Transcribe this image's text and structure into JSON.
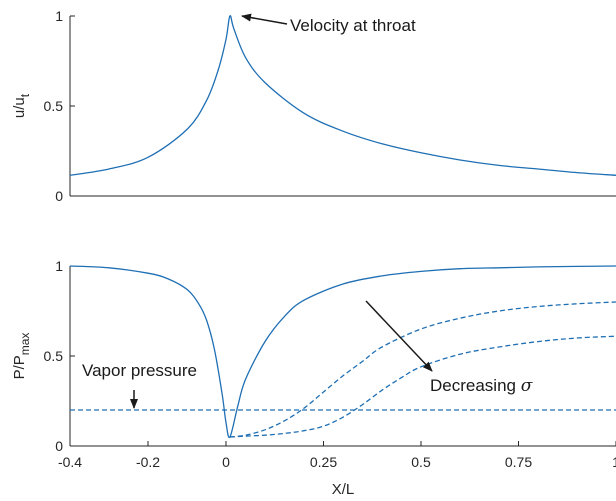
{
  "chart_data": [
    {
      "type": "line",
      "panel": "top",
      "xlim": [
        -0.4,
        1
      ],
      "ylim": [
        0,
        1
      ],
      "yticks": [
        "0",
        "0.5",
        "1"
      ],
      "ylabel_main": "u/u",
      "ylabel_sub": "t",
      "grid": false,
      "color": "#1f6fb4",
      "series": [
        {
          "style": "solid",
          "x": [
            -0.4,
            -0.3,
            -0.2,
            -0.1,
            -0.05,
            -0.02,
            0.0,
            0.01,
            0.02,
            0.05,
            0.1,
            0.2,
            0.3,
            0.4,
            0.5,
            0.6,
            0.7,
            0.8,
            0.9,
            1.0
          ],
          "y": [
            0.115,
            0.15,
            0.215,
            0.37,
            0.53,
            0.7,
            0.87,
            1.0,
            0.93,
            0.77,
            0.63,
            0.46,
            0.36,
            0.29,
            0.24,
            0.2,
            0.17,
            0.15,
            0.13,
            0.115
          ]
        }
      ],
      "annotations": [
        {
          "text": "Velocity at throat",
          "arrow_to": [
            0.01,
            1.0
          ]
        }
      ]
    },
    {
      "type": "line",
      "panel": "bottom",
      "xlim": [
        -0.4,
        1
      ],
      "ylim": [
        0,
        1
      ],
      "xticks": [
        "-0.4",
        "-0.2",
        "0",
        "0.25",
        "0.5",
        "0.75",
        "1"
      ],
      "yticks": [
        "0",
        "0.5",
        "1"
      ],
      "xlabel": "X/L",
      "ylabel_main": "P/P",
      "ylabel_sub": "max",
      "grid": false,
      "color": "#1f6fb4",
      "series": [
        {
          "style": "solid",
          "x": [
            -0.4,
            -0.3,
            -0.2,
            -0.15,
            -0.1,
            -0.07,
            -0.05,
            -0.03,
            -0.01,
            0.0,
            0.01,
            0.03,
            0.05,
            0.1,
            0.15,
            0.2,
            0.3,
            0.4,
            0.5,
            0.6,
            0.7,
            0.8,
            0.9,
            1.0
          ],
          "y": [
            1.0,
            0.99,
            0.96,
            0.93,
            0.87,
            0.79,
            0.7,
            0.54,
            0.29,
            0.13,
            0.05,
            0.22,
            0.37,
            0.58,
            0.72,
            0.81,
            0.9,
            0.945,
            0.97,
            0.985,
            0.99,
            0.995,
            0.998,
            1.0
          ]
        },
        {
          "style": "dashed",
          "x": [
            0.01,
            0.05,
            0.1,
            0.15,
            0.2,
            0.25,
            0.3,
            0.35,
            0.4,
            0.5,
            0.6,
            0.7,
            0.8,
            0.9,
            1.0
          ],
          "y": [
            0.05,
            0.06,
            0.09,
            0.14,
            0.21,
            0.3,
            0.39,
            0.47,
            0.55,
            0.65,
            0.71,
            0.75,
            0.775,
            0.79,
            0.8
          ]
        },
        {
          "style": "dashed",
          "x": [
            0.01,
            0.05,
            0.1,
            0.15,
            0.2,
            0.25,
            0.3,
            0.35,
            0.4,
            0.45,
            0.5,
            0.6,
            0.7,
            0.8,
            0.9,
            1.0
          ],
          "y": [
            0.05,
            0.055,
            0.06,
            0.07,
            0.085,
            0.11,
            0.16,
            0.23,
            0.31,
            0.38,
            0.44,
            0.51,
            0.55,
            0.58,
            0.6,
            0.61
          ]
        },
        {
          "style": "dashed",
          "x": [
            -0.4,
            1.0
          ],
          "y": [
            0.2,
            0.2
          ]
        }
      ],
      "annotations": [
        {
          "text": "Vapor pressure",
          "arrow_to": [
            -0.24,
            0.2
          ]
        },
        {
          "text_main": "Decreasing ",
          "text_symbol": "σ",
          "arrow_from": [
            0.25,
            0.87
          ],
          "arrow_to": [
            0.62,
            0.42
          ]
        }
      ]
    }
  ]
}
